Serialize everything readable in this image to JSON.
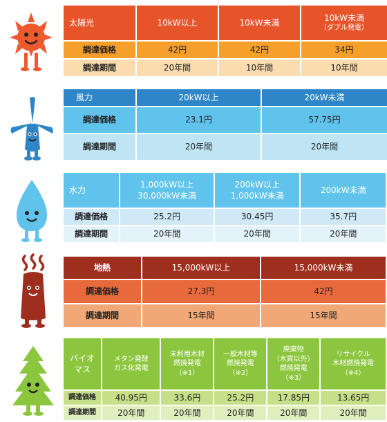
{
  "sections": [
    {
      "name": "太陽光",
      "headers": [
        "10kW以上",
        "10kW未満"
      ],
      "header_note": "（ダブル発電）",
      "header_last": "10kW未満",
      "price_label": "調達価格",
      "prices": [
        "42円",
        "42円",
        "34円"
      ],
      "period_label": "調達期間",
      "periods": [
        "20年間",
        "10年間",
        "10年間"
      ],
      "colors": {
        "header": "#e8542a",
        "price": "#f6a02b",
        "period": "#fbdcae"
      }
    },
    {
      "name": "風力",
      "headers": [
        "20kW以上",
        "20kW未満"
      ],
      "price_label": "調達価格",
      "prices": [
        "23.1円",
        "57.75円"
      ],
      "period_label": "調達期間",
      "periods": [
        "20年間",
        "20年間"
      ],
      "colors": {
        "header": "#2e86c9",
        "price": "#5fc3ec",
        "period": "#bfe5f4"
      }
    },
    {
      "name": "水力",
      "headers_line1": [
        "1,000kW以上",
        "200kW以上",
        "200kW未満"
      ],
      "headers_line2": [
        "30,000kW未満",
        "1,000kW未満"
      ],
      "price_label": "調達価格",
      "prices": [
        "25.2円",
        "30.45円",
        "35.7円"
      ],
      "period_label": "調達期間",
      "periods": [
        "20年間",
        "20年間",
        "20年間"
      ],
      "colors": {
        "header": "#5fc3ec",
        "price": "#cfe9f6",
        "period": "#e3f3fa"
      }
    },
    {
      "name": "地熱",
      "headers": [
        "15,000kW以上",
        "15,000kW未満"
      ],
      "price_label": "調達価格",
      "prices": [
        "27.3円",
        "42円"
      ],
      "period_label": "調達期間",
      "periods": [
        "15年間",
        "15年間"
      ],
      "colors": {
        "header": "#9e2f1e",
        "price": "#e86a3c",
        "period": "#f1a877"
      }
    },
    {
      "name_line1": "バイオ",
      "name_line2": "マス",
      "headers": [
        [
          "メタン発酵",
          "ガス化発電"
        ],
        [
          "未利用木材",
          "燃焼発電",
          "（※1）"
        ],
        [
          "一般木材等",
          "燃焼発電",
          "（※2）"
        ],
        [
          "廃棄物",
          "（木質以外）",
          "燃焼発電",
          "（※3）"
        ],
        [
          "リサイクル",
          "木材燃焼発電",
          "（※4）"
        ]
      ],
      "price_label": "調達価格",
      "prices": [
        "40.95円",
        "33.6円",
        "25.2円",
        "17.85円",
        "13.65円"
      ],
      "period_label": "調達期間",
      "periods": [
        "20年間",
        "20年間",
        "20年間",
        "20年間",
        "20年間"
      ],
      "colors": {
        "header": "#8cc63f",
        "price": "#c6e08a",
        "period": "#e0efbe"
      }
    }
  ],
  "mascots": [
    "sun-mascot-icon",
    "wind-turbine-mascot-icon",
    "water-drop-mascot-icon",
    "geothermal-mascot-icon",
    "tree-mascot-icon"
  ]
}
